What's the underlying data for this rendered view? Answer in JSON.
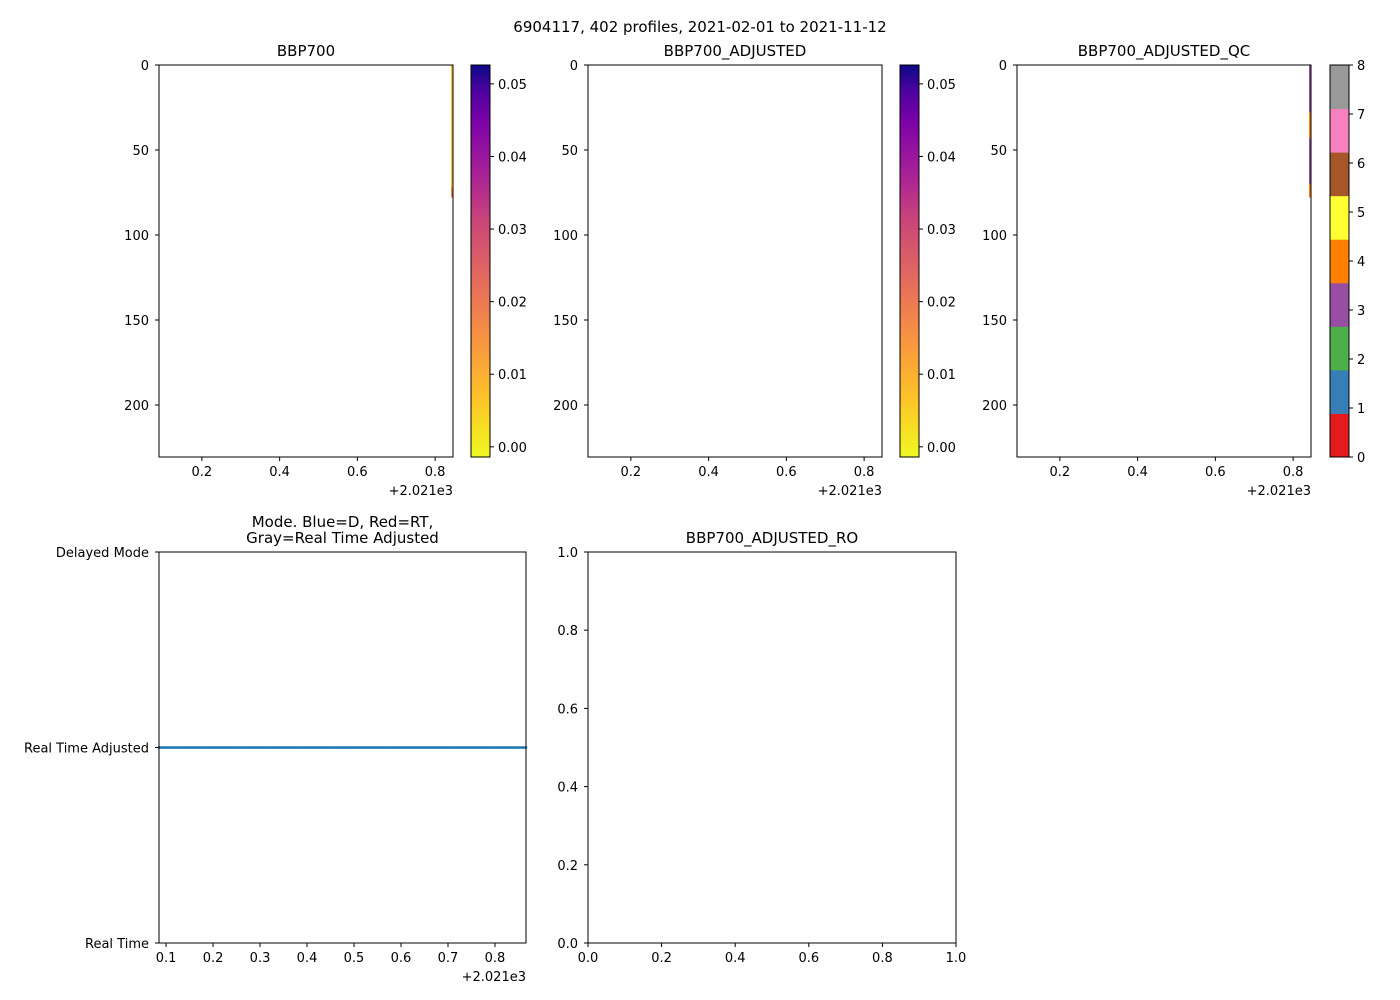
{
  "suptitle": "6904117, 402 profiles, 2021-02-01 to 2021-11-12",
  "colors": {
    "mode_points": "#1f77b4",
    "bbp_shallow": "#f9c325",
    "bbp_deep": "#f0804f",
    "qc_set1": [
      "#e41a1c",
      "#377eb8",
      "#4daf4a",
      "#984ea3",
      "#ff7f00",
      "#ffff33",
      "#a65628",
      "#f781bf",
      "#999999"
    ]
  },
  "chart_data": [
    {
      "type": "heatmap",
      "title": "BBP700",
      "xlim": [
        0.0897,
        0.846
      ],
      "ylim": [
        230.6,
        0
      ],
      "xticks": [
        "0.2",
        "0.4",
        "0.6",
        "0.8"
      ],
      "xtick_values": [
        0.2,
        0.4,
        0.6,
        0.8
      ],
      "x_offset_label": "+2.021e3",
      "yticks": [
        "0",
        "50",
        "100",
        "150",
        "200"
      ],
      "ytick_values": [
        0,
        50,
        100,
        150,
        200
      ],
      "colorbar": {
        "range": [
          -0.0014,
          0.0526
        ],
        "ticks": [
          "0.00",
          "0.01",
          "0.02",
          "0.03",
          "0.04",
          "0.05"
        ],
        "tick_values": [
          0,
          0.01,
          0.02,
          0.03,
          0.04,
          0.05
        ],
        "cmap": "plasma_r"
      },
      "visible_data": [
        {
          "x": 0.845,
          "depth": [
            0,
            78
          ],
          "value_range": [
            0.0,
            0.015
          ]
        }
      ]
    },
    {
      "type": "heatmap",
      "title": "BBP700_ADJUSTED",
      "xlim": [
        0.0897,
        0.846
      ],
      "ylim": [
        230.6,
        0
      ],
      "xticks": [
        "0.2",
        "0.4",
        "0.6",
        "0.8"
      ],
      "xtick_values": [
        0.2,
        0.4,
        0.6,
        0.8
      ],
      "x_offset_label": "+2.021e3",
      "yticks": [
        "0",
        "50",
        "100",
        "150",
        "200"
      ],
      "ytick_values": [
        0,
        50,
        100,
        150,
        200
      ],
      "colorbar": {
        "range": [
          -0.0014,
          0.0526
        ],
        "ticks": [
          "0.00",
          "0.01",
          "0.02",
          "0.03",
          "0.04",
          "0.05"
        ],
        "tick_values": [
          0,
          0.01,
          0.02,
          0.03,
          0.04,
          0.05
        ],
        "cmap": "plasma_r"
      },
      "visible_data": []
    },
    {
      "type": "heatmap",
      "title": "BBP700_ADJUSTED_QC",
      "xlim": [
        0.0897,
        0.846
      ],
      "ylim": [
        230.6,
        0
      ],
      "xticks": [
        "0.2",
        "0.4",
        "0.6",
        "0.8"
      ],
      "xtick_values": [
        0.2,
        0.4,
        0.6,
        0.8
      ],
      "x_offset_label": "+2.021e3",
      "yticks": [
        "0",
        "50",
        "100",
        "150",
        "200"
      ],
      "ytick_values": [
        0,
        50,
        100,
        150,
        200
      ],
      "colorbar": {
        "range": [
          0,
          8
        ],
        "ticks": [
          "0",
          "1",
          "2",
          "3",
          "4",
          "5",
          "6",
          "7",
          "8"
        ],
        "tick_values": [
          0,
          1,
          2,
          3,
          4,
          5,
          6,
          7,
          8
        ],
        "cmap": "Set1"
      },
      "visible_data": [
        {
          "x": 0.845,
          "depth": [
            0,
            28
          ],
          "qc": 3
        },
        {
          "x": 0.845,
          "depth": [
            28,
            43
          ],
          "qc": 4
        },
        {
          "x": 0.845,
          "depth": [
            43,
            70
          ],
          "qc": 3
        },
        {
          "x": 0.845,
          "depth": [
            70,
            78
          ],
          "qc": 4
        }
      ]
    },
    {
      "type": "scatter",
      "title": "Mode. Blue=D, Red=RT,",
      "title_line2": "Gray=Real Time Adjusted",
      "xlim": [
        0.085,
        0.866
      ],
      "xticks": [
        "0.1",
        "0.2",
        "0.3",
        "0.4",
        "0.5",
        "0.6",
        "0.7",
        "0.8"
      ],
      "xtick_values": [
        0.1,
        0.2,
        0.3,
        0.4,
        0.5,
        0.6,
        0.7,
        0.8
      ],
      "x_offset_label": "+2.021e3",
      "yticks": [
        "Real Time",
        "Real Time Adjusted",
        "Delayed Mode"
      ],
      "ylim": [
        0,
        2
      ],
      "series": [
        {
          "name": "mode",
          "count": 402,
          "x_range": [
            0.085,
            0.866
          ],
          "y": 1
        }
      ]
    },
    {
      "type": "line",
      "title": "BBP700_ADJUSTED_RO",
      "xlim": [
        0,
        1
      ],
      "ylim": [
        0,
        1
      ],
      "xticks": [
        "0.0",
        "0.2",
        "0.4",
        "0.6",
        "0.8",
        "1.0"
      ],
      "xtick_values": [
        0,
        0.2,
        0.4,
        0.6,
        0.8,
        1.0
      ],
      "yticks": [
        "0.0",
        "0.2",
        "0.4",
        "0.6",
        "0.8",
        "1.0"
      ],
      "ytick_values": [
        0,
        0.2,
        0.4,
        0.6,
        0.8,
        1.0
      ],
      "series": []
    }
  ]
}
